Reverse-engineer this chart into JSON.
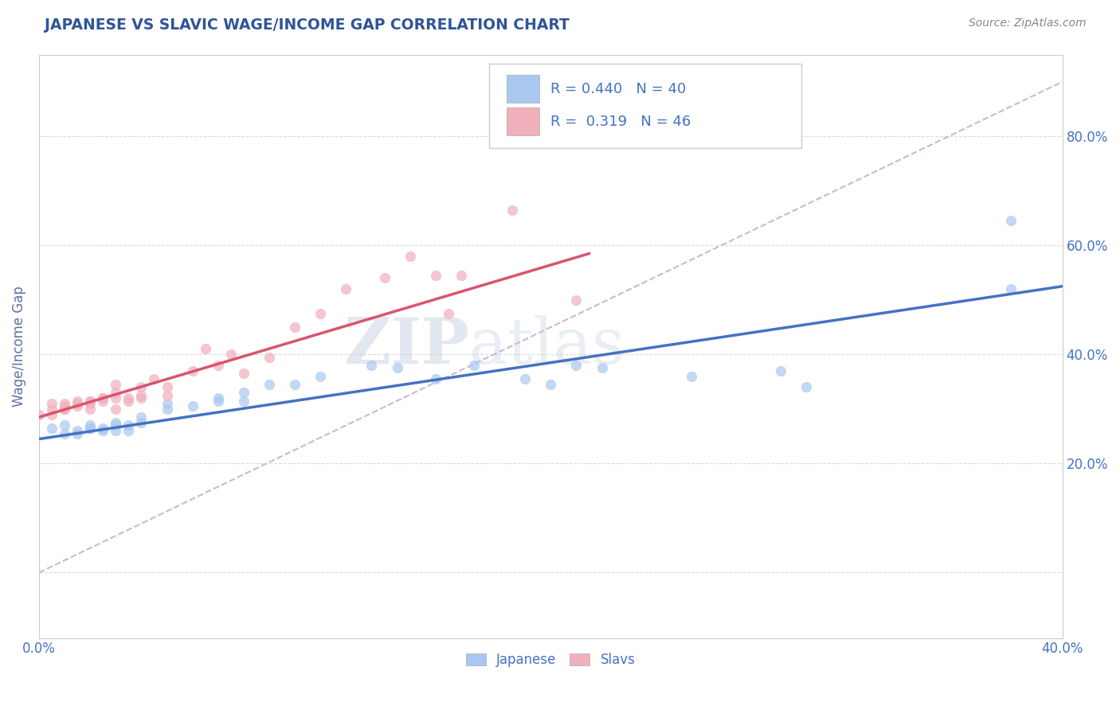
{
  "title": "JAPANESE VS SLAVIC WAGE/INCOME GAP CORRELATION CHART",
  "source_text": "Source: ZipAtlas.com",
  "ylabel": "Wage/Income Gap",
  "xlim": [
    0.0,
    0.4
  ],
  "ylim": [
    -0.12,
    0.95
  ],
  "yticks": [
    0.0,
    0.2,
    0.4,
    0.6,
    0.8
  ],
  "ytick_labels": [
    "",
    "20.0%",
    "40.0%",
    "60.0%",
    "80.0%"
  ],
  "xticks": [
    0.0,
    0.05,
    0.1,
    0.15,
    0.2,
    0.25,
    0.3,
    0.35,
    0.4
  ],
  "xtick_labels": [
    "0.0%",
    "",
    "",
    "",
    "",
    "",
    "",
    "",
    "40.0%"
  ],
  "watermark_zip": "ZIP",
  "watermark_atlas": "atlas",
  "legend_R_japanese": "0.440",
  "legend_N_japanese": "40",
  "legend_R_slavic": "0.319",
  "legend_N_slavic": "46",
  "japanese_color": "#a8c8f0",
  "slavic_color": "#f0b0bc",
  "japanese_line_color": "#4472c4",
  "slavic_line_color": "#d9546e",
  "diagonal_color": "#d0b8c8",
  "background_color": "#ffffff",
  "grid_color": "#d8d8d8",
  "title_color": "#2f5597",
  "axis_label_color": "#6070a0",
  "tick_label_color": "#4472c4",
  "japanese_scatter_x": [
    0.005,
    0.01,
    0.01,
    0.015,
    0.015,
    0.02,
    0.02,
    0.02,
    0.025,
    0.025,
    0.03,
    0.03,
    0.03,
    0.035,
    0.035,
    0.04,
    0.04,
    0.05,
    0.05,
    0.06,
    0.07,
    0.07,
    0.08,
    0.08,
    0.09,
    0.1,
    0.11,
    0.13,
    0.14,
    0.155,
    0.17,
    0.19,
    0.2,
    0.21,
    0.22,
    0.255,
    0.29,
    0.3,
    0.38,
    0.38
  ],
  "japanese_scatter_y": [
    0.265,
    0.255,
    0.27,
    0.255,
    0.26,
    0.265,
    0.27,
    0.265,
    0.26,
    0.265,
    0.26,
    0.27,
    0.275,
    0.26,
    0.27,
    0.275,
    0.285,
    0.3,
    0.31,
    0.305,
    0.315,
    0.32,
    0.315,
    0.33,
    0.345,
    0.345,
    0.36,
    0.38,
    0.375,
    0.355,
    0.38,
    0.355,
    0.345,
    0.38,
    0.375,
    0.36,
    0.37,
    0.34,
    0.52,
    0.645
  ],
  "slavic_scatter_x": [
    0.0,
    0.005,
    0.005,
    0.005,
    0.01,
    0.01,
    0.01,
    0.01,
    0.015,
    0.015,
    0.015,
    0.02,
    0.02,
    0.02,
    0.02,
    0.025,
    0.025,
    0.025,
    0.03,
    0.03,
    0.03,
    0.03,
    0.035,
    0.035,
    0.04,
    0.04,
    0.04,
    0.045,
    0.05,
    0.05,
    0.06,
    0.065,
    0.07,
    0.075,
    0.08,
    0.09,
    0.1,
    0.11,
    0.12,
    0.135,
    0.145,
    0.155,
    0.16,
    0.165,
    0.185,
    0.21
  ],
  "slavic_scatter_y": [
    0.29,
    0.29,
    0.31,
    0.3,
    0.3,
    0.3,
    0.305,
    0.31,
    0.305,
    0.31,
    0.315,
    0.3,
    0.31,
    0.315,
    0.315,
    0.315,
    0.32,
    0.32,
    0.3,
    0.32,
    0.33,
    0.345,
    0.315,
    0.32,
    0.32,
    0.325,
    0.34,
    0.355,
    0.325,
    0.34,
    0.37,
    0.41,
    0.38,
    0.4,
    0.365,
    0.395,
    0.45,
    0.475,
    0.52,
    0.54,
    0.58,
    0.545,
    0.475,
    0.545,
    0.665,
    0.5
  ],
  "japanese_line_x": [
    0.0,
    0.4
  ],
  "japanese_line_y": [
    0.245,
    0.525
  ],
  "slavic_line_x": [
    0.0,
    0.215
  ],
  "slavic_line_y": [
    0.285,
    0.585
  ],
  "diagonal_line_x": [
    0.0,
    0.4
  ],
  "diagonal_line_y": [
    0.0,
    0.9
  ]
}
